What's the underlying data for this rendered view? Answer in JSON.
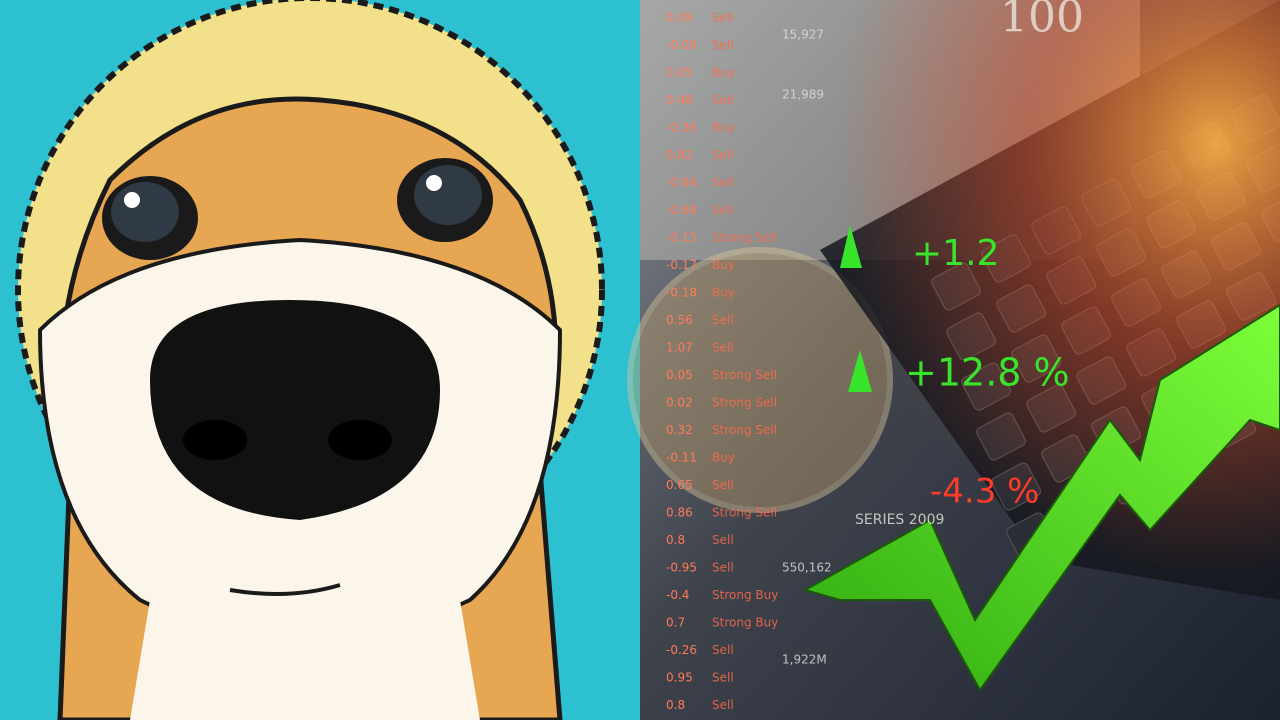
{
  "ticker": [
    {
      "change": "0.09",
      "signal": "Sell"
    },
    {
      "change": "-0.08",
      "signal": "Sell"
    },
    {
      "change": "0.05",
      "signal": "Buy"
    },
    {
      "change": "0.48",
      "signal": "Sell"
    },
    {
      "change": "-0.36",
      "signal": "Buy"
    },
    {
      "change": "0.82",
      "signal": "Sell"
    },
    {
      "change": "-0.94",
      "signal": "Sell"
    },
    {
      "change": "-0.88",
      "signal": "Sell"
    },
    {
      "change": "-0.15",
      "signal": "Strong Sell"
    },
    {
      "change": "-0.17",
      "signal": "Buy"
    },
    {
      "change": "-0.18",
      "signal": "Buy"
    },
    {
      "change": "0.56",
      "signal": "Sell"
    },
    {
      "change": "1.07",
      "signal": "Sell"
    },
    {
      "change": "0.05",
      "signal": "Strong Sell"
    },
    {
      "change": "0.02",
      "signal": "Strong Sell"
    },
    {
      "change": "0.32",
      "signal": "Strong Sell"
    },
    {
      "change": "-0.11",
      "signal": "Buy"
    },
    {
      "change": "0.65",
      "signal": "Sell"
    },
    {
      "change": "0.86",
      "signal": "Strong Sell"
    },
    {
      "change": "0.8",
      "signal": "Sell"
    },
    {
      "change": "-0.95",
      "signal": "Sell"
    },
    {
      "change": "-0.4",
      "signal": "Strong Buy"
    },
    {
      "change": "0.7",
      "signal": "Strong Buy"
    },
    {
      "change": "-0.26",
      "signal": "Sell"
    },
    {
      "change": "0.95",
      "signal": "Sell"
    },
    {
      "change": "0.8",
      "signal": "Sell"
    }
  ],
  "volumes": [
    "15,927",
    "21,989",
    "550,162",
    "1,922M"
  ],
  "banknote": {
    "denomination": "100",
    "series": "SERIES 2009"
  },
  "overlay": {
    "gain_small": "+1.2",
    "gain_large": "+12.8 %",
    "loss": "-4.3 %"
  }
}
